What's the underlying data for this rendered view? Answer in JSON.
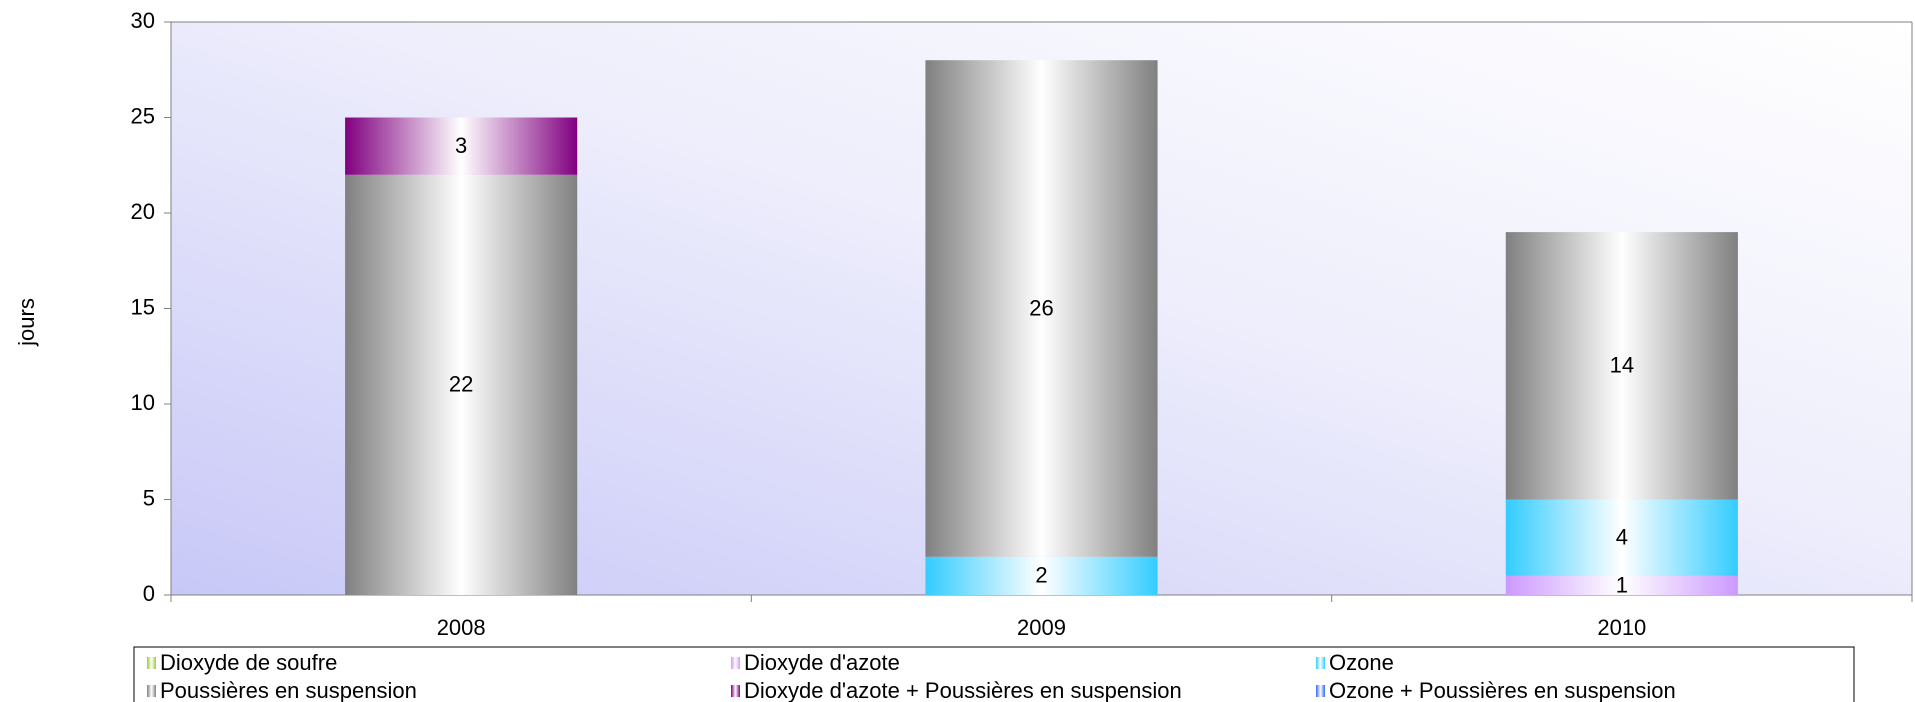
{
  "chart_data": {
    "type": "bar",
    "stacked": true,
    "y_label": "jours",
    "categories": [
      "2008",
      "2009",
      "2010"
    ],
    "series": [
      {
        "name": "Dioxyde de soufre",
        "color": "#99cc33",
        "values": [
          0,
          0,
          0
        ]
      },
      {
        "name": "Dioxyde d'azote",
        "color": "#cc99ff",
        "values": [
          0,
          0,
          1
        ]
      },
      {
        "name": "Ozone",
        "color": "#33ccff",
        "values": [
          0,
          2,
          4
        ]
      },
      {
        "name": "Poussières en suspension",
        "color": "#808080",
        "values": [
          22,
          26,
          14
        ]
      },
      {
        "name": "Dioxyde d'azote + Poussières en suspension",
        "color": "#800080",
        "values": [
          3,
          0,
          0
        ]
      },
      {
        "name": "Ozone + Poussières en suspension",
        "color": "#3366ff",
        "values": [
          0,
          0,
          0
        ]
      }
    ],
    "ylim": [
      0,
      30
    ],
    "yticks": [
      0,
      5,
      10,
      15,
      20,
      25,
      30
    ],
    "legend": "bottom"
  }
}
